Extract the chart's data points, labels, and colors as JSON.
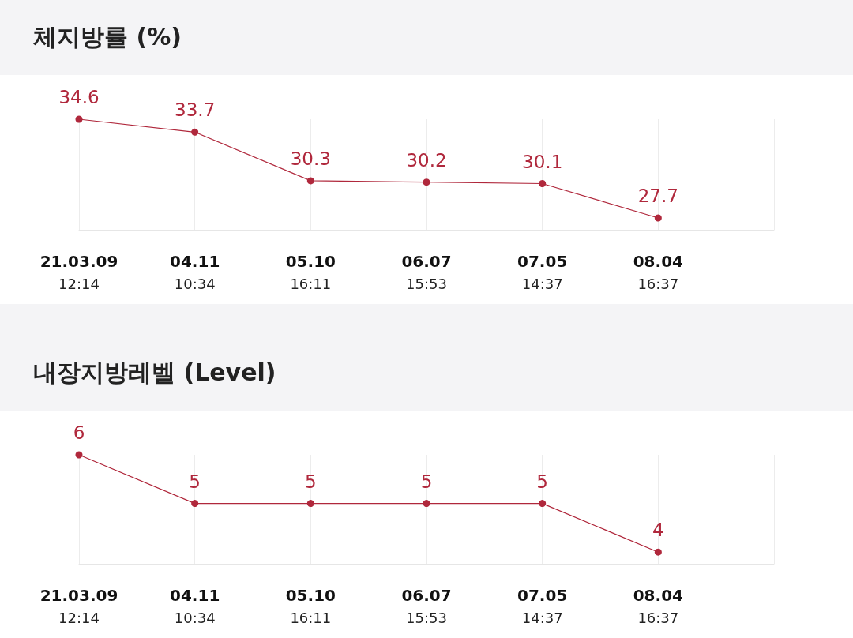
{
  "chart_data": [
    {
      "type": "line",
      "title": "체지방률 (%)",
      "categories": [
        "21.03.09\n12:14",
        "04.11\n10:34",
        "05.10\n16:11",
        "06.07\n15:53",
        "07.05\n14:37",
        "08.04\n16:37",
        null
      ],
      "series": [
        {
          "color": "#b0283c",
          "values": [
            34.6,
            33.7,
            30.3,
            30.2,
            30.1,
            27.7,
            null
          ]
        }
      ],
      "data_labels": true,
      "grid": "x",
      "marker": "circle",
      "tick_labels": "x"
    },
    {
      "type": "line",
      "title": "내장지방레벨 (Level)",
      "categories": [
        "21.03.09\n12:14",
        "04.11\n10:34",
        "05.10\n16:11",
        "06.07\n15:53",
        "07.05\n14:37",
        "08.04\n16:37",
        null
      ],
      "series": [
        {
          "color": "#b0283c",
          "values": [
            6,
            5,
            5,
            5,
            5,
            4,
            null
          ]
        }
      ],
      "data_labels": true,
      "grid": "x",
      "marker": "circle",
      "tick_labels": "x"
    }
  ]
}
